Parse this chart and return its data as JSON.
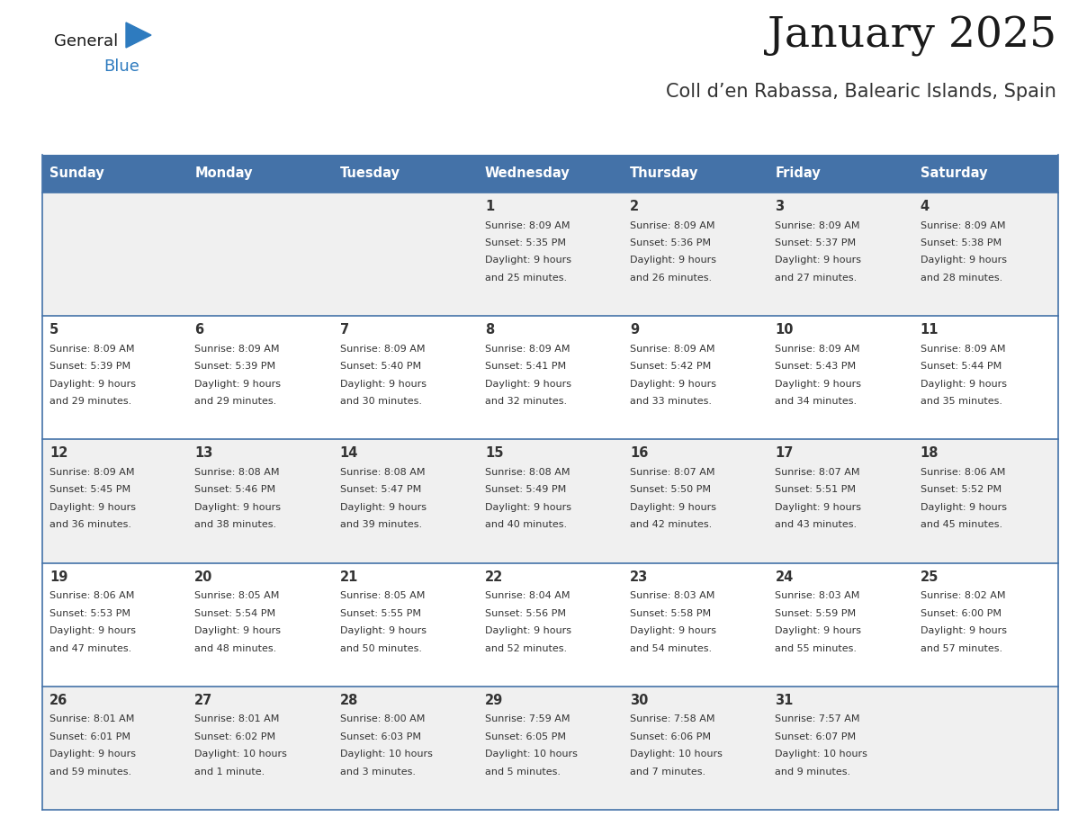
{
  "title": "January 2025",
  "subtitle": "Coll d’en Rabassa, Balearic Islands, Spain",
  "days_of_week": [
    "Sunday",
    "Monday",
    "Tuesday",
    "Wednesday",
    "Thursday",
    "Friday",
    "Saturday"
  ],
  "header_bg": "#4472a8",
  "header_text": "#ffffff",
  "row_bg_light": "#f0f0f0",
  "row_bg_white": "#ffffff",
  "separator_color": "#4472a8",
  "cell_text_color": "#333333",
  "title_color": "#1a1a1a",
  "subtitle_color": "#333333",
  "logo_general_color": "#1a1a1a",
  "logo_blue_color": "#2e7bbf",
  "logo_triangle_color": "#2e7bbf",
  "calendar": [
    [
      {
        "day": "",
        "sunrise": "",
        "sunset": "",
        "daylight": ""
      },
      {
        "day": "",
        "sunrise": "",
        "sunset": "",
        "daylight": ""
      },
      {
        "day": "",
        "sunrise": "",
        "sunset": "",
        "daylight": ""
      },
      {
        "day": "1",
        "sunrise": "8:09 AM",
        "sunset": "5:35 PM",
        "daylight": "9 hours\nand 25 minutes."
      },
      {
        "day": "2",
        "sunrise": "8:09 AM",
        "sunset": "5:36 PM",
        "daylight": "9 hours\nand 26 minutes."
      },
      {
        "day": "3",
        "sunrise": "8:09 AM",
        "sunset": "5:37 PM",
        "daylight": "9 hours\nand 27 minutes."
      },
      {
        "day": "4",
        "sunrise": "8:09 AM",
        "sunset": "5:38 PM",
        "daylight": "9 hours\nand 28 minutes."
      }
    ],
    [
      {
        "day": "5",
        "sunrise": "8:09 AM",
        "sunset": "5:39 PM",
        "daylight": "9 hours\nand 29 minutes."
      },
      {
        "day": "6",
        "sunrise": "8:09 AM",
        "sunset": "5:39 PM",
        "daylight": "9 hours\nand 29 minutes."
      },
      {
        "day": "7",
        "sunrise": "8:09 AM",
        "sunset": "5:40 PM",
        "daylight": "9 hours\nand 30 minutes."
      },
      {
        "day": "8",
        "sunrise": "8:09 AM",
        "sunset": "5:41 PM",
        "daylight": "9 hours\nand 32 minutes."
      },
      {
        "day": "9",
        "sunrise": "8:09 AM",
        "sunset": "5:42 PM",
        "daylight": "9 hours\nand 33 minutes."
      },
      {
        "day": "10",
        "sunrise": "8:09 AM",
        "sunset": "5:43 PM",
        "daylight": "9 hours\nand 34 minutes."
      },
      {
        "day": "11",
        "sunrise": "8:09 AM",
        "sunset": "5:44 PM",
        "daylight": "9 hours\nand 35 minutes."
      }
    ],
    [
      {
        "day": "12",
        "sunrise": "8:09 AM",
        "sunset": "5:45 PM",
        "daylight": "9 hours\nand 36 minutes."
      },
      {
        "day": "13",
        "sunrise": "8:08 AM",
        "sunset": "5:46 PM",
        "daylight": "9 hours\nand 38 minutes."
      },
      {
        "day": "14",
        "sunrise": "8:08 AM",
        "sunset": "5:47 PM",
        "daylight": "9 hours\nand 39 minutes."
      },
      {
        "day": "15",
        "sunrise": "8:08 AM",
        "sunset": "5:49 PM",
        "daylight": "9 hours\nand 40 minutes."
      },
      {
        "day": "16",
        "sunrise": "8:07 AM",
        "sunset": "5:50 PM",
        "daylight": "9 hours\nand 42 minutes."
      },
      {
        "day": "17",
        "sunrise": "8:07 AM",
        "sunset": "5:51 PM",
        "daylight": "9 hours\nand 43 minutes."
      },
      {
        "day": "18",
        "sunrise": "8:06 AM",
        "sunset": "5:52 PM",
        "daylight": "9 hours\nand 45 minutes."
      }
    ],
    [
      {
        "day": "19",
        "sunrise": "8:06 AM",
        "sunset": "5:53 PM",
        "daylight": "9 hours\nand 47 minutes."
      },
      {
        "day": "20",
        "sunrise": "8:05 AM",
        "sunset": "5:54 PM",
        "daylight": "9 hours\nand 48 minutes."
      },
      {
        "day": "21",
        "sunrise": "8:05 AM",
        "sunset": "5:55 PM",
        "daylight": "9 hours\nand 50 minutes."
      },
      {
        "day": "22",
        "sunrise": "8:04 AM",
        "sunset": "5:56 PM",
        "daylight": "9 hours\nand 52 minutes."
      },
      {
        "day": "23",
        "sunrise": "8:03 AM",
        "sunset": "5:58 PM",
        "daylight": "9 hours\nand 54 minutes."
      },
      {
        "day": "24",
        "sunrise": "8:03 AM",
        "sunset": "5:59 PM",
        "daylight": "9 hours\nand 55 minutes."
      },
      {
        "day": "25",
        "sunrise": "8:02 AM",
        "sunset": "6:00 PM",
        "daylight": "9 hours\nand 57 minutes."
      }
    ],
    [
      {
        "day": "26",
        "sunrise": "8:01 AM",
        "sunset": "6:01 PM",
        "daylight": "9 hours\nand 59 minutes."
      },
      {
        "day": "27",
        "sunrise": "8:01 AM",
        "sunset": "6:02 PM",
        "daylight": "10 hours\nand 1 minute."
      },
      {
        "day": "28",
        "sunrise": "8:00 AM",
        "sunset": "6:03 PM",
        "daylight": "10 hours\nand 3 minutes."
      },
      {
        "day": "29",
        "sunrise": "7:59 AM",
        "sunset": "6:05 PM",
        "daylight": "10 hours\nand 5 minutes."
      },
      {
        "day": "30",
        "sunrise": "7:58 AM",
        "sunset": "6:06 PM",
        "daylight": "10 hours\nand 7 minutes."
      },
      {
        "day": "31",
        "sunrise": "7:57 AM",
        "sunset": "6:07 PM",
        "daylight": "10 hours\nand 9 minutes."
      },
      {
        "day": "",
        "sunrise": "",
        "sunset": "",
        "daylight": ""
      }
    ]
  ],
  "fig_width": 11.88,
  "fig_height": 9.18,
  "dpi": 100
}
